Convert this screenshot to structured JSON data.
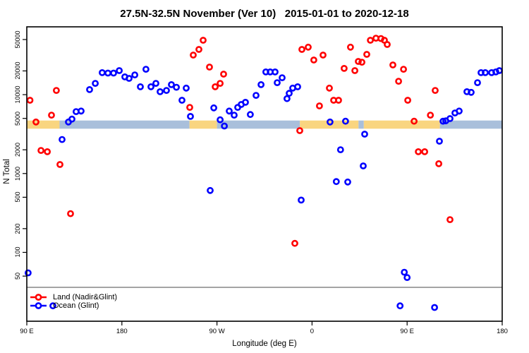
{
  "chart_data": {
    "type": "scatter",
    "title": "27.5N-32.5N November (Ver 10)   2015-01-01 to 2020-12-18",
    "xlabel": "Longitude (deg E)",
    "ylabel": "N Total",
    "x_axis": {
      "range": [
        90,
        540
      ],
      "ticks": [
        90,
        180,
        270,
        360,
        450,
        540
      ],
      "tick_labels": [
        "90 E",
        "180",
        "90 W",
        "0",
        "90 E",
        "180"
      ]
    },
    "y_axis": {
      "scale": "log",
      "ticks": [
        50000,
        20000,
        10000,
        5000,
        2000,
        1000,
        500,
        200,
        100,
        50
      ],
      "top_value": 50000
    },
    "ref_line_n": 36,
    "surface_band": {
      "n_top": 4700,
      "n_bottom": 3700,
      "colors": {
        "land": "#F9D580",
        "ocean": "#A9BFDB"
      },
      "segments": [
        {
          "type": "land",
          "from": 90,
          "to": 121
        },
        {
          "type": "ocean",
          "from": 121,
          "to": 244
        },
        {
          "type": "land",
          "from": 244,
          "to": 270
        },
        {
          "type": "ocean",
          "from": 270,
          "to": 348.5
        },
        {
          "type": "land",
          "from": 348.5,
          "to": 404
        },
        {
          "type": "ocean",
          "from": 404,
          "to": 409
        },
        {
          "type": "land",
          "from": 409,
          "to": 481
        },
        {
          "type": "ocean",
          "from": 481,
          "to": 540
        }
      ]
    },
    "series": [
      {
        "id": "land",
        "name": "Land (Nadir&Glint)",
        "color": "#FF0000",
        "points": [
          [
            93,
            8500
          ],
          [
            98.7,
            4500
          ],
          [
            103.4,
            1960
          ],
          [
            109.4,
            1890
          ],
          [
            113.4,
            5500
          ],
          [
            118,
            11300
          ],
          [
            121.4,
            1300
          ],
          [
            131.4,
            310
          ],
          [
            244.2,
            6900
          ],
          [
            247.6,
            31800
          ],
          [
            252.9,
            37500
          ],
          [
            256.9,
            49000
          ],
          [
            262.9,
            22400
          ],
          [
            268.3,
            12600
          ],
          [
            273,
            13900
          ],
          [
            276.3,
            18200
          ],
          [
            343.7,
            130
          ],
          [
            348.4,
            3500
          ],
          [
            350.4,
            37500
          ],
          [
            356.4,
            40000
          ],
          [
            361.7,
            27500
          ],
          [
            367,
            7200
          ],
          [
            370.4,
            31800
          ],
          [
            376.4,
            12100
          ],
          [
            380.4,
            8500
          ],
          [
            385.1,
            8500
          ],
          [
            390.4,
            21500
          ],
          [
            396.4,
            40000
          ],
          [
            400.5,
            20200
          ],
          [
            403.8,
            26400
          ],
          [
            407.2,
            25800
          ],
          [
            411.8,
            32400
          ],
          [
            415.2,
            49000
          ],
          [
            420.5,
            52000
          ],
          [
            425.2,
            51500
          ],
          [
            428.5,
            49000
          ],
          [
            431.2,
            43300
          ],
          [
            436.5,
            23800
          ],
          [
            441.9,
            14800
          ],
          [
            446.6,
            21000
          ],
          [
            450.6,
            8500
          ],
          [
            456.6,
            4600
          ],
          [
            460.6,
            1890
          ],
          [
            466.6,
            1890
          ],
          [
            472,
            5500
          ],
          [
            476.6,
            11300
          ],
          [
            480,
            1330
          ],
          [
            490.6,
            260
          ]
        ]
      },
      {
        "id": "ocean",
        "name": "Ocean (Glint)",
        "color": "#0000FF",
        "points": [
          [
            91.3,
            55
          ],
          [
            114.7,
            21
          ],
          [
            123.4,
            2700
          ],
          [
            129.4,
            4500
          ],
          [
            132.7,
            4900
          ],
          [
            136.7,
            6100
          ],
          [
            141.4,
            6200
          ],
          [
            149.4,
            11600
          ],
          [
            154.8,
            13900
          ],
          [
            161.4,
            19000
          ],
          [
            166.8,
            18800
          ],
          [
            172.1,
            18800
          ],
          [
            177.5,
            20200
          ],
          [
            182.8,
            16800
          ],
          [
            186.8,
            16100
          ],
          [
            192.2,
            17800
          ],
          [
            197.5,
            12600
          ],
          [
            202.8,
            21000
          ],
          [
            207.5,
            12600
          ],
          [
            212.2,
            13900
          ],
          [
            216.2,
            10900
          ],
          [
            222.2,
            11300
          ],
          [
            226.9,
            13400
          ],
          [
            231.6,
            12400
          ],
          [
            236.9,
            8500
          ],
          [
            240.9,
            12100
          ],
          [
            244.9,
            5300
          ],
          [
            263.6,
            610
          ],
          [
            267,
            6800
          ],
          [
            273,
            4800
          ],
          [
            277,
            4000
          ],
          [
            281.6,
            6200
          ],
          [
            286.3,
            5500
          ],
          [
            289.6,
            6900
          ],
          [
            293,
            7500
          ],
          [
            297,
            8000
          ],
          [
            301.6,
            5600
          ],
          [
            307,
            9800
          ],
          [
            311.7,
            13400
          ],
          [
            316.3,
            19400
          ],
          [
            320.4,
            19400
          ],
          [
            325,
            19400
          ],
          [
            327,
            14200
          ],
          [
            331.7,
            16400
          ],
          [
            336.3,
            8900
          ],
          [
            338.4,
            10400
          ],
          [
            341.7,
            12100
          ],
          [
            346.4,
            12600
          ],
          [
            349.7,
            460
          ],
          [
            377,
            4500
          ],
          [
            383,
            790
          ],
          [
            387,
            2000
          ],
          [
            391.7,
            4600
          ],
          [
            393.8,
            780
          ],
          [
            408.5,
            1250
          ],
          [
            409.8,
            3160
          ],
          [
            443.3,
            21
          ],
          [
            447.3,
            56
          ],
          [
            450,
            48
          ],
          [
            476,
            20
          ],
          [
            480.6,
            2570
          ],
          [
            484,
            4600
          ],
          [
            486.6,
            4650
          ],
          [
            490.6,
            4970
          ],
          [
            495.3,
            5860
          ],
          [
            499.3,
            6200
          ],
          [
            506.6,
            10900
          ],
          [
            510.6,
            10700
          ],
          [
            516.6,
            14200
          ],
          [
            520,
            19000
          ],
          [
            524,
            19000
          ],
          [
            530,
            19000
          ],
          [
            534,
            19400
          ],
          [
            537.3,
            20200
          ]
        ]
      }
    ],
    "legend": {
      "entries": [
        {
          "id": "land",
          "label": "Land (Nadir&Glint)",
          "color": "#FF0000"
        },
        {
          "id": "ocean",
          "label": "Ocean (Glint)",
          "color": "#0000FF"
        }
      ]
    }
  }
}
